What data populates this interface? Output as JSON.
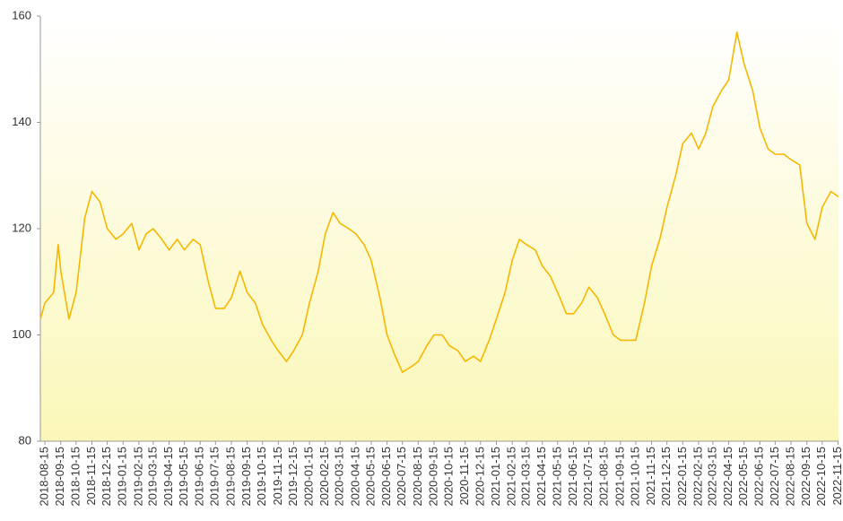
{
  "chart_data": {
    "type": "line",
    "x": [
      "2018-08-06",
      "2018-08-15",
      "2018-09-01",
      "2018-09-10",
      "2018-09-15",
      "2018-10-01",
      "2018-10-15",
      "2018-11-01",
      "2018-11-15",
      "2018-12-01",
      "2018-12-15",
      "2019-01-01",
      "2019-01-15",
      "2019-02-01",
      "2019-02-15",
      "2019-03-01",
      "2019-03-15",
      "2019-04-01",
      "2019-04-15",
      "2019-05-01",
      "2019-05-15",
      "2019-06-01",
      "2019-06-15",
      "2019-07-01",
      "2019-07-15",
      "2019-08-01",
      "2019-08-15",
      "2019-09-01",
      "2019-09-15",
      "2019-10-01",
      "2019-10-15",
      "2019-11-01",
      "2019-11-15",
      "2019-12-01",
      "2019-12-15",
      "2020-01-01",
      "2020-01-15",
      "2020-02-01",
      "2020-02-15",
      "2020-03-01",
      "2020-03-15",
      "2020-04-01",
      "2020-04-15",
      "2020-05-01",
      "2020-05-15",
      "2020-06-01",
      "2020-06-15",
      "2020-07-01",
      "2020-07-15",
      "2020-08-01",
      "2020-08-15",
      "2020-09-01",
      "2020-09-15",
      "2020-10-01",
      "2020-10-15",
      "2020-11-01",
      "2020-11-15",
      "2020-12-01",
      "2020-12-15",
      "2021-01-01",
      "2021-01-15",
      "2021-02-01",
      "2021-02-15",
      "2021-03-01",
      "2021-03-15",
      "2021-04-01",
      "2021-04-15",
      "2021-05-01",
      "2021-05-15",
      "2021-06-01",
      "2021-06-15",
      "2021-07-01",
      "2021-07-15",
      "2021-08-01",
      "2021-08-15",
      "2021-09-01",
      "2021-09-15",
      "2021-10-01",
      "2021-10-15",
      "2021-11-01",
      "2021-11-15",
      "2021-12-01",
      "2021-12-15",
      "2022-01-01",
      "2022-01-15",
      "2022-02-01",
      "2022-02-15",
      "2022-03-01",
      "2022-03-15",
      "2022-04-01",
      "2022-04-15",
      "2022-05-01",
      "2022-05-15",
      "2022-06-01",
      "2022-06-15",
      "2022-07-01",
      "2022-07-15",
      "2022-08-01",
      "2022-08-15",
      "2022-09-01",
      "2022-09-15",
      "2022-10-01",
      "2022-10-15",
      "2022-11-01",
      "2022-11-16"
    ],
    "series": [
      {
        "color": "#f5b700",
        "values": [
          103,
          106,
          108,
          117,
          112,
          103,
          108,
          122,
          127,
          125,
          120,
          118,
          119,
          121,
          116,
          119,
          120,
          118,
          116,
          118,
          116,
          118,
          117,
          110,
          105,
          105,
          107,
          112,
          108,
          106,
          102,
          99,
          97,
          95,
          97,
          100,
          106,
          112,
          119,
          123,
          121,
          120,
          119,
          117,
          114,
          107,
          100,
          96,
          93,
          94,
          95,
          98,
          100,
          100,
          98,
          97,
          95,
          96,
          95,
          99,
          103,
          108,
          114,
          118,
          117,
          116,
          113,
          111,
          108,
          104,
          104,
          106,
          109,
          107,
          104,
          100,
          99,
          99,
          99,
          106,
          113,
          118,
          124,
          130,
          136,
          138,
          135,
          138,
          143,
          146,
          148,
          157,
          151,
          146,
          139,
          135,
          134,
          134,
          133,
          132,
          121,
          118,
          124,
          127,
          126
        ]
      }
    ],
    "xlim": [
      "2018-08-06",
      "2022-11-16"
    ],
    "xticks": [
      "2018-08-15",
      "2018-09-15",
      "2018-10-15",
      "2018-11-15",
      "2018-12-15",
      "2019-01-15",
      "2019-02-15",
      "2019-03-15",
      "2019-04-15",
      "2019-05-15",
      "2019-06-15",
      "2019-07-15",
      "2019-08-15",
      "2019-09-15",
      "2019-10-15",
      "2019-11-15",
      "2019-12-15",
      "2020-01-15",
      "2020-02-15",
      "2020-03-15",
      "2020-04-15",
      "2020-05-15",
      "2020-06-15",
      "2020-07-15",
      "2020-08-15",
      "2020-09-15",
      "2020-10-15",
      "2020-11-15",
      "2020-12-15",
      "2021-01-15",
      "2021-02-15",
      "2021-03-15",
      "2021-04-15",
      "2021-05-15",
      "2021-06-15",
      "2021-07-15",
      "2021-08-15",
      "2021-09-15",
      "2021-10-15",
      "2021-11-15",
      "2021-12-15",
      "2022-01-15",
      "2022-02-15",
      "2022-03-15",
      "2022-04-15",
      "2022-05-15",
      "2022-06-15",
      "2022-07-15",
      "2022-08-15",
      "2022-09-15",
      "2022-10-15",
      "2022-11-15"
    ],
    "ylim": [
      80,
      160
    ],
    "yticks": [
      80,
      100,
      120,
      140,
      160
    ]
  }
}
